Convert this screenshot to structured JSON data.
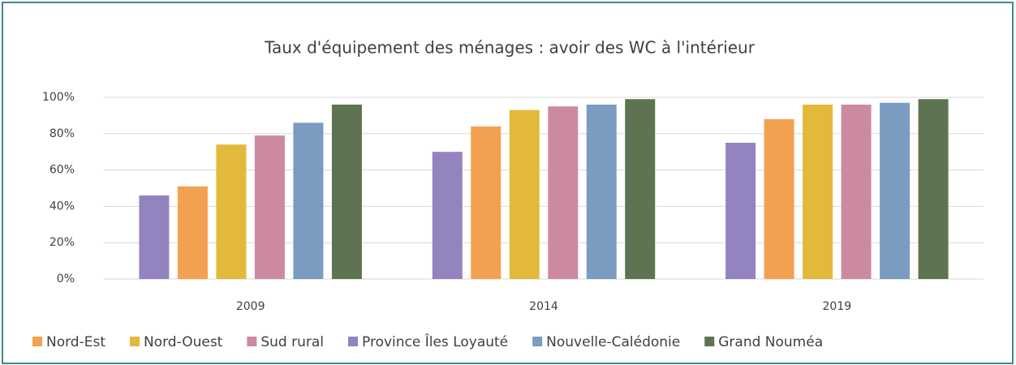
{
  "chart_data": {
    "type": "bar",
    "title": "Taux d'équipement des ménages : avoir des WC à l'intérieur",
    "categories": [
      "2009",
      "2014",
      "2019"
    ],
    "series": [
      {
        "name": "Province Îles Loyauté",
        "color": "#9384c0",
        "values": [
          46,
          70,
          75
        ]
      },
      {
        "name": "Nord-Est",
        "color": "#f2a150",
        "values": [
          51,
          84,
          88
        ]
      },
      {
        "name": "Nord-Ouest",
        "color": "#e3b93c",
        "values": [
          74,
          93,
          96
        ]
      },
      {
        "name": "Sud rural",
        "color": "#cc8aa0",
        "values": [
          79,
          95,
          96
        ]
      },
      {
        "name": "Nouvelle-Calédonie",
        "color": "#7a9cc0",
        "values": [
          86,
          96,
          97
        ]
      },
      {
        "name": "Grand Nouméa",
        "color": "#5e7352",
        "values": [
          96,
          99,
          99
        ]
      }
    ],
    "legend_order": [
      1,
      2,
      3,
      0,
      4,
      5
    ],
    "ylim": [
      0,
      100
    ],
    "yticks": [
      {
        "value": 0,
        "label": "0%"
      },
      {
        "value": 20,
        "label": "20%"
      },
      {
        "value": 40,
        "label": "40%"
      },
      {
        "value": 60,
        "label": "60%"
      },
      {
        "value": 80,
        "label": "80%"
      },
      {
        "value": 100,
        "label": "100%"
      }
    ],
    "grid": true
  }
}
